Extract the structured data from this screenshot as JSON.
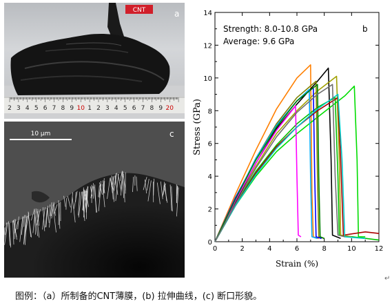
{
  "panel_a": {
    "letter": "a",
    "label_tag": "CNT",
    "ruler_numbers": [
      "2",
      "3",
      "4",
      "5",
      "6",
      "7",
      "8",
      "9",
      "10",
      "1",
      "2",
      "3",
      "4",
      "5",
      "6",
      "7",
      "8",
      "9",
      "20"
    ]
  },
  "panel_c": {
    "letter": "c",
    "scale_label": "10 μm"
  },
  "chart_data": {
    "type": "line",
    "panel_letter": "b",
    "xlabel": "Strain (%)",
    "ylabel": "Stress (GPa)",
    "xlim": [
      0,
      12
    ],
    "ylim": [
      0,
      14
    ],
    "xticks": [
      0,
      2,
      4,
      6,
      8,
      10,
      12
    ],
    "yticks": [
      0,
      2,
      4,
      6,
      8,
      10,
      12,
      14
    ],
    "grid": false,
    "annotations": [
      "Strength: 8.0-10.8 GPa",
      "Average: 9.6 GPa"
    ],
    "series": [
      {
        "color": "#ff7f00",
        "x": [
          0,
          1.5,
          3,
          4.5,
          6,
          7.0,
          7.1,
          7.2,
          7.6
        ],
        "y": [
          0,
          2.9,
          5.6,
          8.1,
          10.0,
          10.8,
          3,
          0.3,
          0.2
        ]
      },
      {
        "color": "#000000",
        "x": [
          0,
          1.5,
          3,
          4.5,
          6,
          7.5,
          8.3,
          8.5,
          8.6,
          9.2
        ],
        "y": [
          0,
          2.4,
          4.8,
          6.9,
          8.4,
          9.8,
          10.6,
          5,
          0.4,
          0.2
        ]
      },
      {
        "color": "#00c000",
        "x": [
          0,
          1.5,
          3,
          4.5,
          6,
          7.5,
          8.8,
          9.0,
          9.1,
          12
        ],
        "y": [
          0,
          2.3,
          4.3,
          5.9,
          7.2,
          8.2,
          8.8,
          4,
          0.4,
          0.1
        ]
      },
      {
        "color": "#a0a000",
        "x": [
          0,
          1.5,
          3,
          4.5,
          6,
          7.5,
          8.9,
          9.1,
          9.2,
          10
        ],
        "y": [
          0,
          2.3,
          4.6,
          6.6,
          8.0,
          9.2,
          10.1,
          5,
          0.4,
          0.3
        ]
      },
      {
        "color": "#00dd00",
        "x": [
          0,
          1.5,
          3,
          4.5,
          6,
          7.5,
          9.5,
          10.2,
          10.4,
          10.5,
          11
        ],
        "y": [
          0,
          2.2,
          4.0,
          5.5,
          6.6,
          7.6,
          8.9,
          9.5,
          5,
          0.3,
          0.3
        ]
      },
      {
        "color": "#808000",
        "x": [
          0,
          1.5,
          3,
          4.5,
          6,
          7.4,
          7.5,
          7.6,
          8
        ],
        "y": [
          0,
          2.6,
          5.1,
          7.2,
          8.8,
          9.8,
          4,
          0.3,
          0.2
        ]
      },
      {
        "color": "#ff00ff",
        "x": [
          0,
          1.5,
          3,
          4.5,
          5.9,
          6.0,
          6.1,
          6.3
        ],
        "y": [
          0,
          2.5,
          4.8,
          6.8,
          8.3,
          4,
          0.4,
          0.3
        ]
      },
      {
        "color": "#0000ff",
        "x": [
          0,
          1.5,
          3,
          4.5,
          6,
          7.2,
          7.3,
          7.4,
          7.8
        ],
        "y": [
          0,
          2.7,
          5.0,
          7.1,
          8.6,
          9.4,
          4,
          0.3,
          0.2
        ]
      },
      {
        "color": "#00aaff",
        "x": [
          0,
          1.5,
          3,
          4.5,
          6,
          6.9,
          7.0,
          7.1,
          7.5
        ],
        "y": [
          0,
          2.6,
          5.1,
          7.1,
          8.6,
          9.3,
          4,
          0.3,
          0.2
        ]
      },
      {
        "color": "#008000",
        "x": [
          0,
          1.5,
          3,
          4.5,
          6,
          7.5,
          7.6,
          7.7,
          8
        ],
        "y": [
          0,
          2.6,
          5.0,
          7.0,
          8.6,
          9.6,
          4,
          0.3,
          0.2
        ]
      },
      {
        "color": "#aa0000",
        "x": [
          0,
          1.5,
          3,
          4.5,
          6,
          7.5,
          9.0,
          9.2,
          9.4,
          11,
          12
        ],
        "y": [
          0,
          2.2,
          4.2,
          5.8,
          7.0,
          8.0,
          8.8,
          5,
          0.4,
          0.6,
          0.5
        ]
      },
      {
        "color": "#00cccc",
        "x": [
          0,
          1.5,
          3,
          4.5,
          6,
          7.5,
          9.0,
          9.3,
          9.5,
          11
        ],
        "y": [
          0,
          2.2,
          4.1,
          5.7,
          7.0,
          8.1,
          9.0,
          5,
          0.3,
          0.2
        ]
      },
      {
        "color": "#707070",
        "x": [
          0,
          1.5,
          3,
          4.5,
          6,
          7.5,
          8.6,
          8.8,
          9.0,
          9.5
        ],
        "y": [
          0,
          2.3,
          4.5,
          6.4,
          7.9,
          9.0,
          9.6,
          4,
          0.4,
          0.3
        ]
      }
    ]
  },
  "caption": "图例：（a）所制备的CNT薄膜，(b) 拉伸曲线，(c) 断口形貌。",
  "para_mark": "↵"
}
